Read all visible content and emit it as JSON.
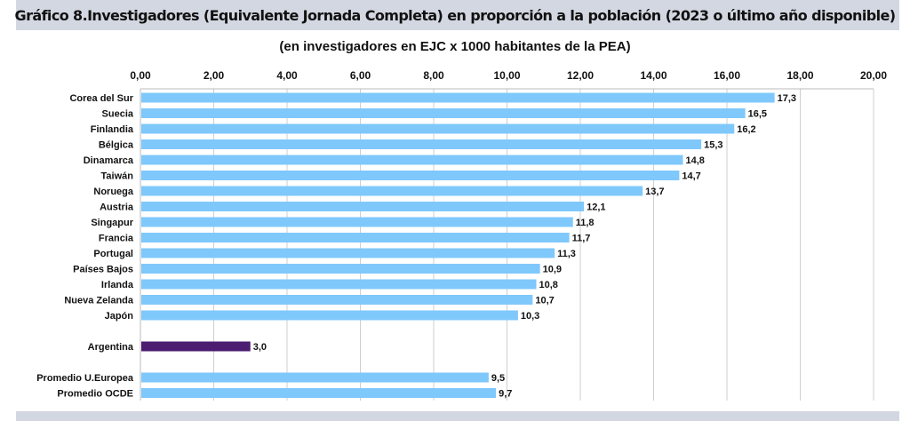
{
  "chart_data": {
    "type": "bar",
    "orientation": "horizontal",
    "title": "Gráfico 8.Investigadores (Equivalente Jornada Completa) en proporción a la población (2023 o último año disponible)",
    "subtitle": "(en investigadores en EJC x 1000 habitantes de la PEA)",
    "xlim": [
      0,
      20
    ],
    "x_ticks": [
      "0,00",
      "2,00",
      "4,00",
      "6,00",
      "8,00",
      "10,00",
      "12,00",
      "14,00",
      "16,00",
      "18,00",
      "20,00"
    ],
    "x_axis_position": "top",
    "grid": true,
    "categories": [
      "Corea del Sur",
      "Suecia",
      "Finlandia",
      "Bélgica",
      "Dinamarca",
      "Taiwán",
      "Noruega",
      "Austria",
      "Singapur",
      "Francia",
      "Portugal",
      "Países Bajos",
      "Irlanda",
      "Nueva Zelanda",
      "Japón",
      "Argentina",
      "Promedio U.Europea",
      "Promedio OCDE"
    ],
    "values": [
      17.3,
      16.5,
      16.2,
      15.3,
      14.8,
      14.7,
      13.7,
      12.1,
      11.8,
      11.7,
      11.3,
      10.9,
      10.8,
      10.7,
      10.3,
      3.0,
      9.5,
      9.7
    ],
    "data_labels": [
      "17,3",
      "16,5",
      "16,2",
      "15,3",
      "14,8",
      "14,7",
      "13,7",
      "12,1",
      "11,8",
      "11,7",
      "11,3",
      "10,9",
      "10,8",
      "10,7",
      "10,3",
      "3,0",
      "9,5",
      "9,7"
    ],
    "colors": {
      "default": "#7fc8fb",
      "highlight": "#4b1c70"
    },
    "highlight_category": "Argentina"
  }
}
